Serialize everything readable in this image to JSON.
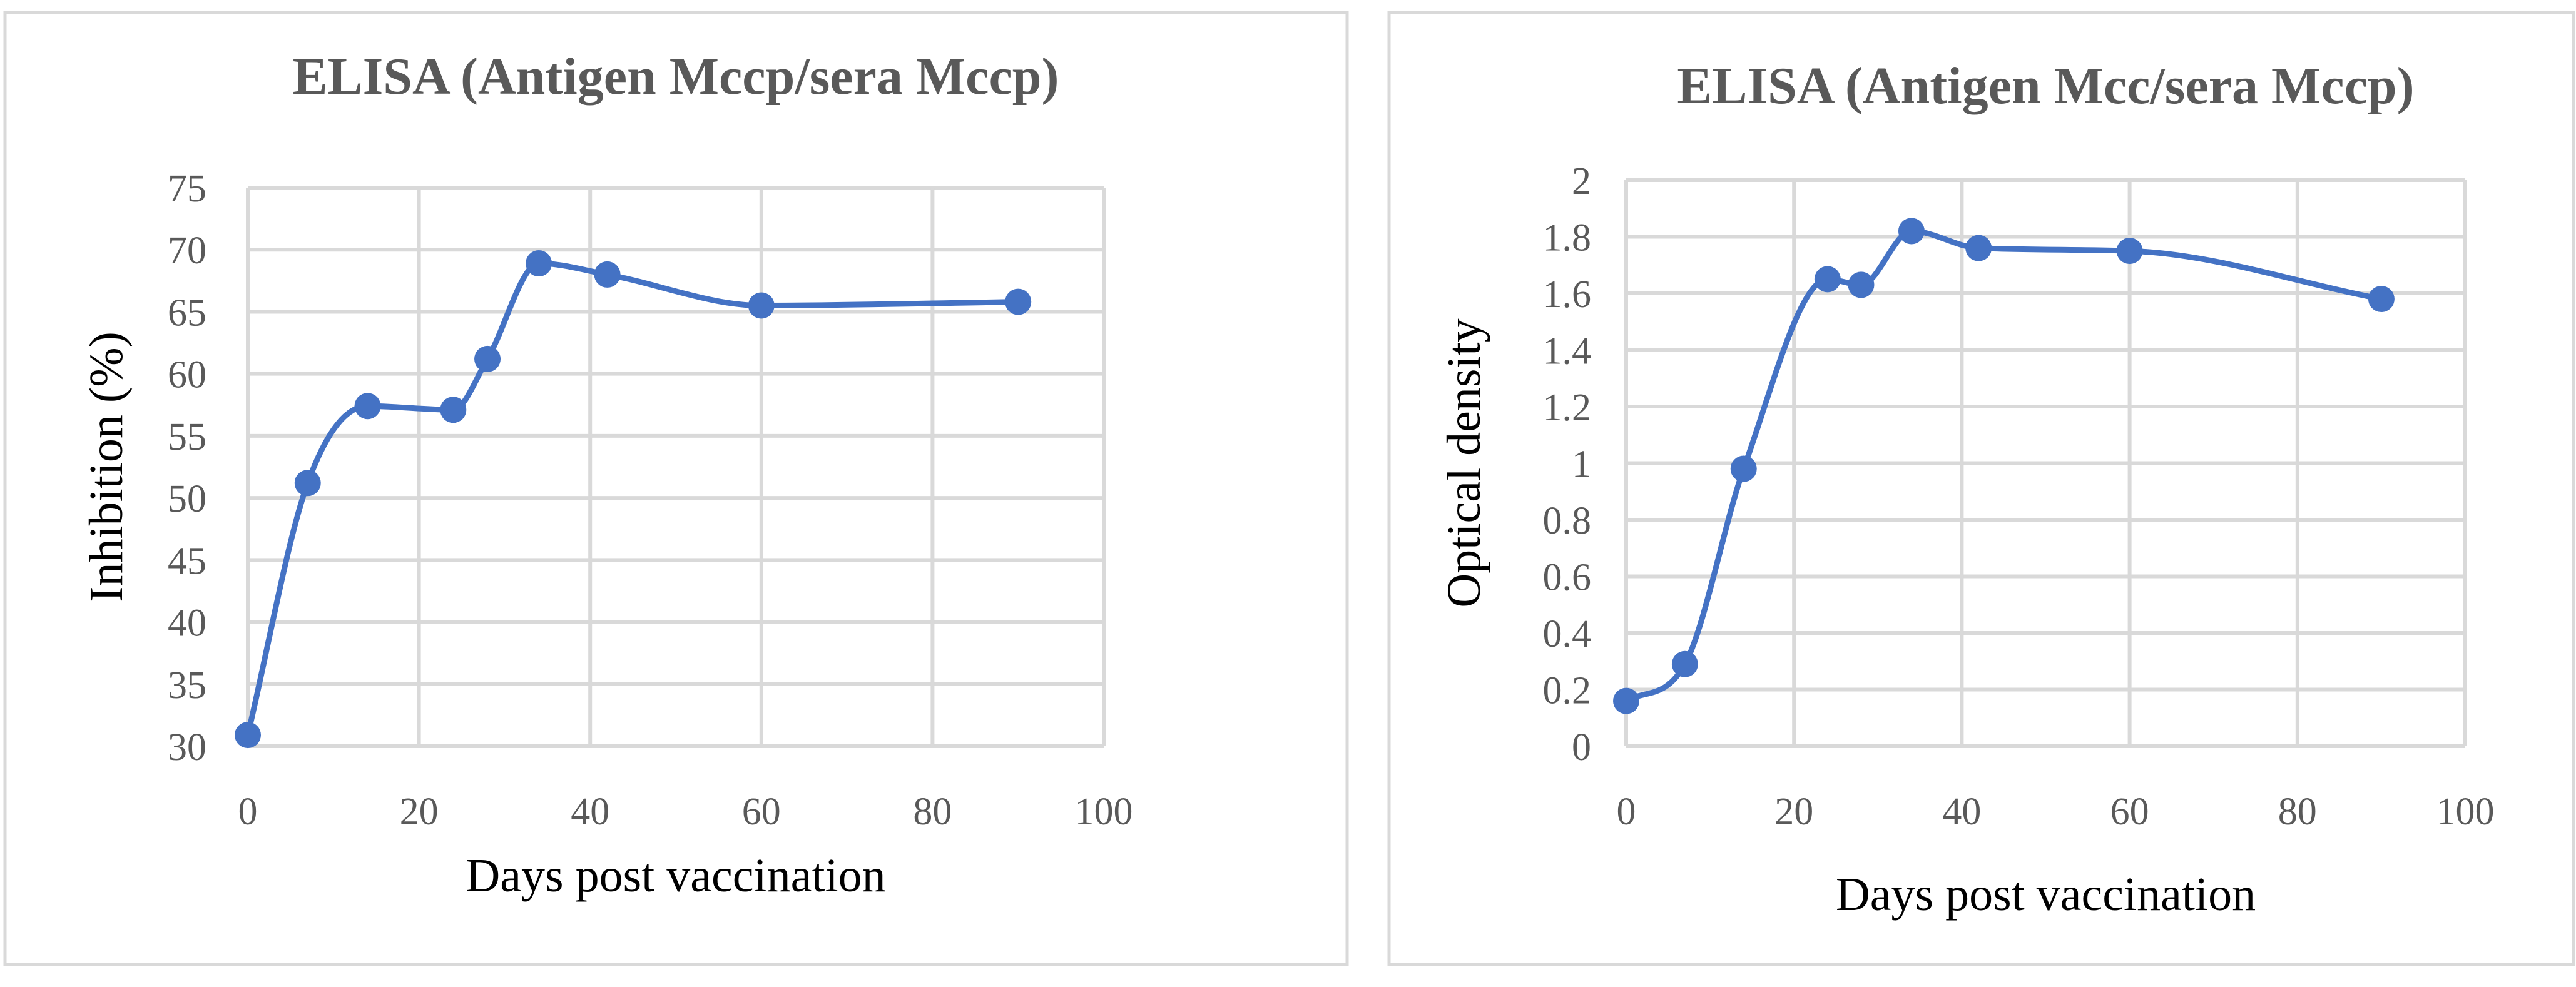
{
  "chart_data": [
    {
      "type": "line",
      "smooth": true,
      "title": "ELISA (Antigen  Mccp/sera Mccp)",
      "xlabel": "Days post vaccination",
      "ylabel": "Inhibition (%)",
      "xlim": [
        0,
        100
      ],
      "ylim": [
        30,
        75
      ],
      "xticks": [
        0,
        20,
        40,
        60,
        80,
        100
      ],
      "yticks": [
        30,
        35,
        40,
        45,
        50,
        55,
        60,
        65,
        70,
        75
      ],
      "grid": true,
      "legend": "none",
      "series": [
        {
          "name": "Inhibition (%)",
          "color": "#4472c4",
          "x": [
            0,
            7,
            14,
            24,
            28,
            34,
            42,
            60,
            90
          ],
          "y": [
            30.9,
            51.2,
            57.4,
            57.1,
            61.2,
            68.9,
            68.0,
            65.5,
            65.8
          ]
        }
      ]
    },
    {
      "type": "line",
      "smooth": true,
      "title": "ELISA (Antigen Mcc/sera Mccp)",
      "xlabel": "Days post vaccination",
      "ylabel": "Optical density",
      "xlim": [
        0,
        100
      ],
      "ylim": [
        0,
        2
      ],
      "xticks": [
        0,
        20,
        40,
        60,
        80,
        100
      ],
      "yticks": [
        0,
        0.2,
        0.4,
        0.6,
        0.8,
        1,
        1.2,
        1.4,
        1.6,
        1.8,
        2
      ],
      "grid": true,
      "legend": "none",
      "series": [
        {
          "name": "Optical density",
          "color": "#4472c4",
          "x": [
            0,
            7,
            14,
            24,
            28,
            34,
            42,
            60,
            90
          ],
          "y": [
            0.16,
            0.29,
            0.98,
            1.65,
            1.63,
            1.82,
            1.76,
            1.75,
            1.58
          ]
        }
      ]
    }
  ]
}
